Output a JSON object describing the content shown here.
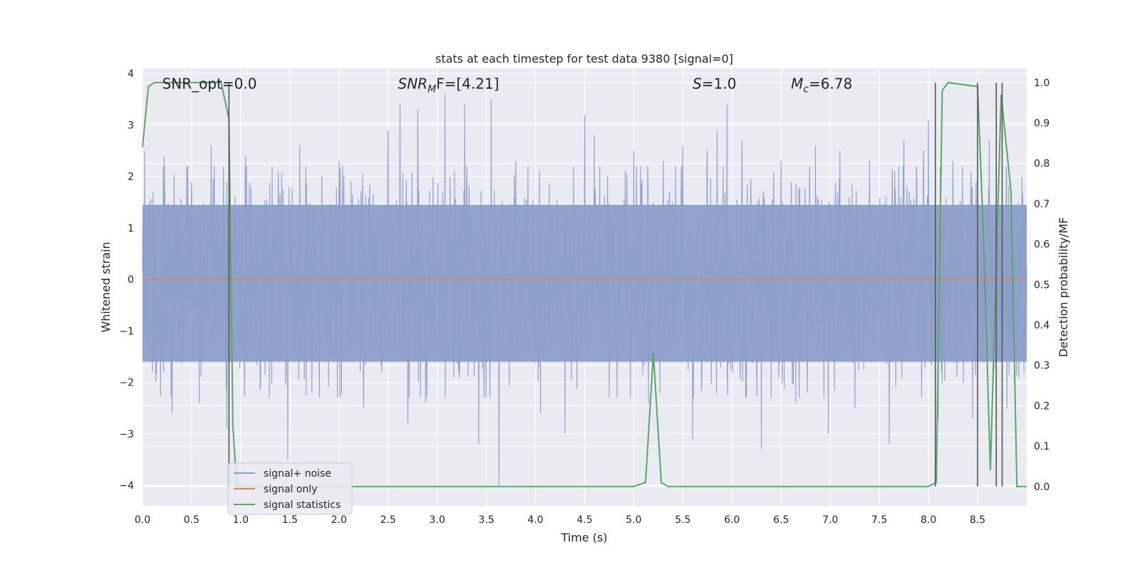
{
  "chart_data": {
    "type": "line",
    "title": "stats at each timestep for test data 9380 [signal=0]",
    "xlabel": "Time (s)",
    "ylabel": "Whitened strain",
    "y2label": "Detection probability/MF",
    "xlim": [
      0.0,
      9.0
    ],
    "ylim": [
      -4.4,
      4.1
    ],
    "y2lim": [
      -0.048,
      1.035
    ],
    "xticks": [
      "0.0",
      "0.5",
      "1.0",
      "1.5",
      "2.0",
      "2.5",
      "3.0",
      "3.5",
      "4.0",
      "4.5",
      "5.0",
      "5.5",
      "6.0",
      "6.5",
      "7.0",
      "7.5",
      "8.0",
      "8.5"
    ],
    "yticks": [
      "4",
      "3",
      "2",
      "1",
      "0",
      "−1",
      "−2",
      "−3",
      "−4"
    ],
    "y2ticks": [
      "1.0",
      "0.9",
      "0.8",
      "0.7",
      "0.6",
      "0.5",
      "0.4",
      "0.3",
      "0.2",
      "0.1",
      "0.0"
    ],
    "grid": true,
    "legend_position": "lower-left",
    "colors": {
      "noise": "#8c9fc9",
      "signal": "#dd8452",
      "stats": "#55a868",
      "vlines": "#555555",
      "plot_bg": "#eaeaf2",
      "grid": "#ffffff"
    },
    "annotations": [
      {
        "text": "SNR_opt=0.0",
        "x": 0.2,
        "y": 3.8
      },
      {
        "text": "SNR",
        "sub": "M",
        "tail": "F=[4.21]",
        "italic": true,
        "x": 2.6,
        "y": 3.8
      },
      {
        "text": "S",
        "tail": "=1.0",
        "italic": true,
        "x": 5.6,
        "y": 3.8
      },
      {
        "text": "M",
        "sub": "c",
        "tail": "=6.78",
        "italic": true,
        "x": 6.6,
        "y": 3.8
      }
    ],
    "series": [
      {
        "name": "signal+ noise",
        "noise_std": 0.95,
        "noise_band": [
          -1.6,
          1.45
        ],
        "peak_samples": [
          [
            0.02,
            2.5
          ],
          [
            0.1,
            -1.8
          ],
          [
            0.22,
            2.4
          ],
          [
            0.3,
            -2.6
          ],
          [
            0.45,
            2.2
          ],
          [
            0.58,
            -2.4
          ],
          [
            0.7,
            2.6
          ],
          [
            0.86,
            -2.9
          ],
          [
            1.05,
            2.4
          ],
          [
            1.2,
            -2.1
          ],
          [
            1.38,
            2.1
          ],
          [
            1.48,
            -3.5
          ],
          [
            1.6,
            2.6
          ],
          [
            1.8,
            -2.3
          ],
          [
            2.0,
            2.3
          ],
          [
            2.25,
            -2.5
          ],
          [
            2.5,
            2.9
          ],
          [
            2.62,
            3.4
          ],
          [
            2.7,
            -2.8
          ],
          [
            2.8,
            3.3
          ],
          [
            2.88,
            -2.4
          ],
          [
            3.08,
            3.6
          ],
          [
            3.28,
            3.4
          ],
          [
            3.42,
            -3.2
          ],
          [
            3.55,
            3.5
          ],
          [
            3.63,
            -4.0
          ],
          [
            3.8,
            2.3
          ],
          [
            4.05,
            -2.6
          ],
          [
            4.3,
            -3.0
          ],
          [
            4.5,
            3.2
          ],
          [
            4.6,
            2.8
          ],
          [
            4.75,
            -2.3
          ],
          [
            5.0,
            2.5
          ],
          [
            5.15,
            -2.4
          ],
          [
            5.3,
            2.3
          ],
          [
            5.5,
            2.6
          ],
          [
            5.6,
            -3.1
          ],
          [
            5.75,
            2.5
          ],
          [
            5.85,
            2.9
          ],
          [
            5.95,
            3.4
          ],
          [
            6.1,
            2.7
          ],
          [
            6.3,
            -3.3
          ],
          [
            6.5,
            2.3
          ],
          [
            6.65,
            -2.4
          ],
          [
            6.85,
            2.6
          ],
          [
            6.98,
            -3.0
          ],
          [
            7.1,
            2.5
          ],
          [
            7.25,
            -2.5
          ],
          [
            7.4,
            2.3
          ],
          [
            7.6,
            -3.2
          ],
          [
            7.75,
            2.7
          ],
          [
            7.95,
            2.5
          ],
          [
            8.0,
            3.1
          ],
          [
            8.1,
            -2.7
          ],
          [
            8.25,
            2.3
          ],
          [
            8.45,
            -2.7
          ],
          [
            8.62,
            2.7
          ],
          [
            8.8,
            -2.5
          ],
          [
            8.95,
            2.0
          ]
        ]
      },
      {
        "name": "signal only",
        "x": [
          0.0,
          9.0
        ],
        "y": [
          0.0,
          0.0
        ]
      },
      {
        "name": "signal statistics",
        "axis": "right",
        "x": [
          0.0,
          0.06,
          0.12,
          0.2,
          0.3,
          0.4,
          0.5,
          0.6,
          0.7,
          0.8,
          0.88,
          0.92,
          0.96,
          1.0,
          2.0,
          3.0,
          4.0,
          5.0,
          5.12,
          5.2,
          5.28,
          5.35,
          6.0,
          7.0,
          8.0,
          8.08,
          8.14,
          8.2,
          8.5,
          8.56,
          8.63,
          8.74,
          8.84,
          8.9,
          9.0
        ],
        "y": [
          0.84,
          0.99,
          1.0,
          1.0,
          1.0,
          1.0,
          1.0,
          1.0,
          1.0,
          1.0,
          0.91,
          0.15,
          0.0,
          0.0,
          0.0,
          0.0,
          0.0,
          0.0,
          0.01,
          0.33,
          0.01,
          0.0,
          0.0,
          0.0,
          0.0,
          0.01,
          0.98,
          1.0,
          0.99,
          0.62,
          0.04,
          0.97,
          0.73,
          0.0,
          0.0
        ]
      }
    ],
    "vlines": [
      0.88,
      8.07,
      8.5,
      8.69,
      8.75
    ],
    "legend": [
      "signal+ noise",
      "signal only",
      "signal statistics"
    ]
  }
}
